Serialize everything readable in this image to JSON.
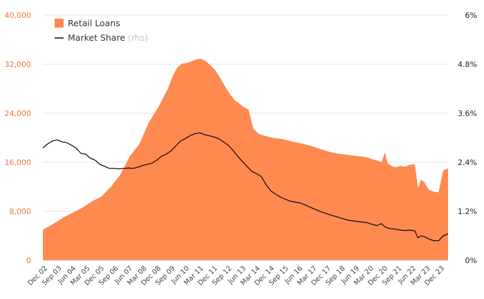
{
  "chart_data": {
    "type": "area",
    "title": "",
    "xlabel": "",
    "ylabel": "",
    "colors": {
      "area": "#ff8a50",
      "line": "#111111",
      "grid": "#e6e6e6",
      "left_tick": "#f4733a"
    },
    "grid": true,
    "legend_position": "top-left",
    "legend": {
      "area_label": "Retail Loans",
      "line_label": "Market Share",
      "line_note": "(rhs)"
    },
    "x_tick_labels": [
      "Dec 02",
      "Sep 03",
      "Jun 04",
      "Mar 05",
      "Dec 05",
      "Sep 06",
      "Jun 07",
      "Mar 08",
      "Dec 08",
      "Sep 09",
      "Jun 10",
      "Mar 11",
      "Dec 11",
      "Sep 12",
      "Jun 13",
      "Mar 14",
      "Dec 14",
      "Sep 15",
      "Jun 16",
      "Mar 17",
      "Dec 17",
      "Sep 18",
      "Jun 19",
      "Mar 20",
      "Dec 20",
      "Sep 21",
      "Jun 22",
      "Mar 23",
      "Dec 23"
    ],
    "y_left": {
      "ylim": [
        0,
        40000
      ],
      "ticks": [
        "0",
        "8,000",
        "16,000",
        "24,000",
        "32,000",
        "40,000"
      ],
      "tick_values": [
        0,
        8000,
        16000,
        24000,
        32000,
        40000
      ]
    },
    "y_right": {
      "ylim": [
        0,
        6
      ],
      "ticks": [
        "0%",
        "1.2%",
        "2.4%",
        "3.6%",
        "4.8%",
        "6%"
      ],
      "tick_values": [
        0,
        1.2,
        2.4,
        3.6,
        4.8,
        6
      ]
    },
    "series": [
      {
        "name": "Retail Loans",
        "axis": "left",
        "x": [
          2002.92,
          2003.5,
          2004.0,
          2004.5,
          2005.0,
          2005.5,
          2006.0,
          2006.5,
          2007.0,
          2007.5,
          2008.0,
          2008.5,
          2009.0,
          2009.5,
          2009.75,
          2010.0,
          2010.25,
          2010.5,
          2010.75,
          2011.0,
          2011.25,
          2011.5,
          2011.75,
          2012.0,
          2012.25,
          2012.5,
          2012.75,
          2013.0,
          2013.25,
          2013.5,
          2013.75,
          2014.0,
          2014.25,
          2014.5,
          2014.75,
          2015.0,
          2015.5,
          2016.0,
          2016.5,
          2017.0,
          2017.5,
          2018.0,
          2018.5,
          2019.0,
          2019.5,
          2020.0,
          2020.25,
          2020.5,
          2020.75,
          2020.92,
          2021.08,
          2021.33,
          2021.5,
          2021.75,
          2022.0,
          2022.25,
          2022.5,
          2022.67,
          2022.83,
          2023.0,
          2023.25,
          2023.5,
          2023.75,
          2024.0,
          2024.25
        ],
        "values": [
          5000,
          6000,
          7000,
          7800,
          8600,
          9600,
          10400,
          12000,
          14000,
          17000,
          19000,
          22500,
          25000,
          28000,
          30000,
          31500,
          32100,
          32200,
          32500,
          32800,
          32900,
          32500,
          31800,
          31000,
          29800,
          28400,
          27200,
          26200,
          25600,
          25000,
          24600,
          21500,
          20700,
          20400,
          20200,
          20000,
          19800,
          19400,
          19100,
          18700,
          18200,
          17700,
          17400,
          17200,
          17000,
          16800,
          16500,
          16300,
          16000,
          17600,
          15800,
          15300,
          15200,
          15400,
          15300,
          15600,
          15700,
          11800,
          13200,
          12700,
          11500,
          11200,
          11100,
          14700,
          15000
        ]
      },
      {
        "name": "Market Share",
        "axis": "right",
        "x": [
          2002.92,
          2003.17,
          2003.42,
          2003.67,
          2003.92,
          2004.17,
          2004.42,
          2004.67,
          2004.92,
          2005.17,
          2005.42,
          2005.67,
          2005.92,
          2006.17,
          2006.42,
          2006.67,
          2006.92,
          2007.17,
          2007.42,
          2007.67,
          2007.92,
          2008.17,
          2008.42,
          2008.67,
          2008.92,
          2009.17,
          2009.42,
          2009.67,
          2009.92,
          2010.17,
          2010.42,
          2010.67,
          2010.92,
          2011.17,
          2011.42,
          2011.67,
          2011.92,
          2012.17,
          2012.42,
          2012.67,
          2012.92,
          2013.17,
          2013.42,
          2013.67,
          2013.92,
          2014.17,
          2014.42,
          2014.67,
          2014.92,
          2015.17,
          2015.42,
          2015.67,
          2015.92,
          2016.5,
          2017.0,
          2017.5,
          2018.0,
          2018.5,
          2019.0,
          2019.5,
          2020.0,
          2020.5,
          2020.75,
          2020.92,
          2021.17,
          2021.5,
          2021.75,
          2022.0,
          2022.25,
          2022.5,
          2022.67,
          2022.83,
          2023.0,
          2023.25,
          2023.5,
          2023.75,
          2024.0,
          2024.25
        ],
        "values": [
          2.75,
          2.85,
          2.92,
          2.95,
          2.9,
          2.88,
          2.82,
          2.75,
          2.62,
          2.6,
          2.5,
          2.45,
          2.35,
          2.3,
          2.25,
          2.25,
          2.24,
          2.25,
          2.26,
          2.25,
          2.28,
          2.32,
          2.35,
          2.38,
          2.45,
          2.55,
          2.6,
          2.68,
          2.8,
          2.92,
          2.98,
          3.05,
          3.1,
          3.12,
          3.08,
          3.05,
          3.02,
          2.98,
          2.9,
          2.82,
          2.7,
          2.55,
          2.42,
          2.3,
          2.18,
          2.12,
          2.05,
          1.85,
          1.7,
          1.62,
          1.55,
          1.5,
          1.45,
          1.4,
          1.3,
          1.2,
          1.12,
          1.05,
          0.98,
          0.95,
          0.92,
          0.85,
          0.9,
          0.82,
          0.78,
          0.76,
          0.74,
          0.73,
          0.74,
          0.72,
          0.55,
          0.6,
          0.58,
          0.52,
          0.48,
          0.48,
          0.6,
          0.65
        ]
      }
    ]
  }
}
